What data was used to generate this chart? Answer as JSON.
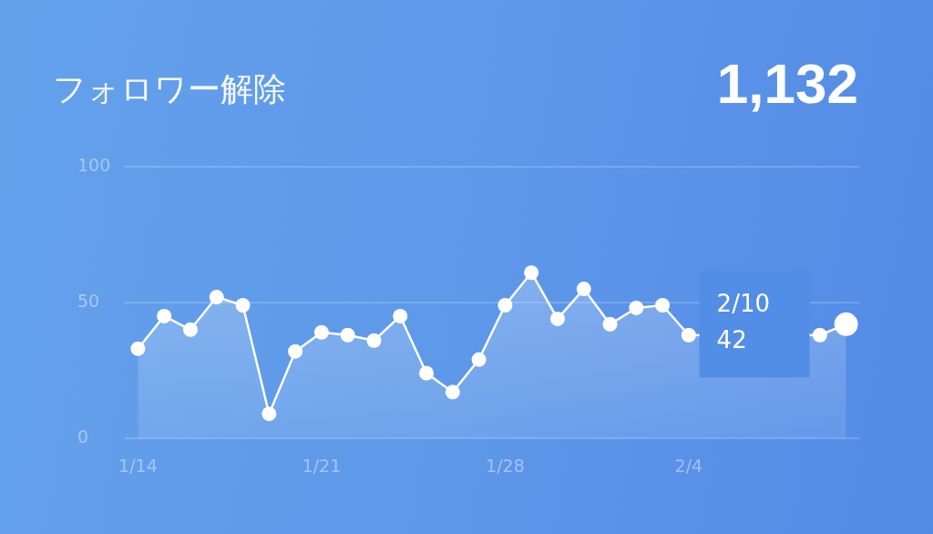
{
  "chart_data": {
    "type": "area",
    "title": "フォロワー解除",
    "categories": [
      "1/14",
      null,
      null,
      null,
      null,
      null,
      null,
      "1/21",
      null,
      null,
      null,
      null,
      null,
      null,
      "1/28",
      null,
      null,
      null,
      null,
      null,
      null,
      "2/4",
      null,
      null,
      null,
      null,
      null,
      null
    ],
    "series": [
      {
        "color": "#ffffff",
        "values": [
          33,
          45,
          40,
          52,
          49,
          9,
          32,
          39,
          38,
          36,
          45,
          24,
          17,
          29,
          49,
          61,
          44,
          55,
          42,
          48,
          49,
          38,
          null,
          null,
          null,
          null,
          38,
          42
        ]
      }
    ],
    "ylim": [
      0,
      100
    ],
    "yticks": [
      0,
      50,
      100
    ],
    "grid": "y",
    "marker": "circle",
    "line_style": "solid",
    "annotations": [
      "1,132",
      "2/10\n42"
    ]
  }
}
